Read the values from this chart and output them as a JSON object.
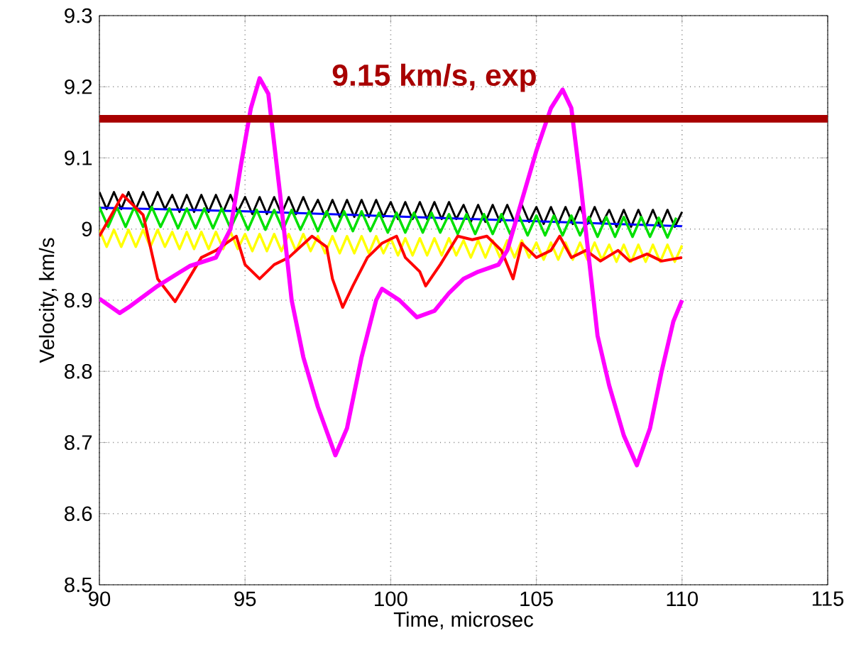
{
  "chart_data": {
    "type": "line",
    "xlabel": "Time, microsec",
    "ylabel": "Velocity, km/s",
    "xlim": [
      90,
      115
    ],
    "ylim": [
      8.5,
      9.3
    ],
    "xticks": [
      90,
      95,
      100,
      105,
      110,
      115
    ],
    "yticks": [
      8.5,
      8.6,
      8.7,
      8.8,
      8.9,
      9,
      9.1,
      9.2,
      9.3
    ],
    "grid": true,
    "x": [
      90,
      90.25,
      90.5,
      90.75,
      91,
      91.25,
      91.5,
      91.75,
      92,
      92.25,
      92.5,
      92.75,
      93,
      93.25,
      93.5,
      93.75,
      94,
      94.25,
      94.5,
      94.75,
      95,
      95.25,
      95.5,
      95.75,
      96,
      96.25,
      96.5,
      96.75,
      97,
      97.25,
      97.5,
      97.75,
      98,
      98.25,
      98.5,
      98.75,
      99,
      99.25,
      99.5,
      99.75,
      100,
      100.25,
      100.5,
      100.75,
      101,
      101.25,
      101.5,
      101.75,
      102,
      102.25,
      102.5,
      102.75,
      103,
      103.25,
      103.5,
      103.75,
      104,
      104.25,
      104.5,
      104.75,
      105,
      105.25,
      105.5,
      105.75,
      106,
      106.25,
      106.5,
      106.75,
      107,
      107.25,
      107.5,
      107.75,
      108,
      108.25,
      108.5,
      108.75,
      109,
      109.25,
      109.5,
      109.75,
      110
    ],
    "ref_lines": [
      {
        "axis": "y",
        "value": 9.155,
        "label": "9.15 km/s, exp",
        "color": "#a80000"
      }
    ],
    "series": [
      {
        "color": "#000000",
        "values": [
          9.052,
          9.028,
          9.052,
          9.028,
          9.052,
          9.028,
          9.052,
          9.028,
          9.052,
          9.028,
          9.048,
          9.024,
          9.048,
          9.024,
          9.048,
          9.024,
          9.048,
          9.024,
          9.048,
          9.024,
          9.045,
          9.021,
          9.045,
          9.021,
          9.045,
          9.021,
          9.045,
          9.021,
          9.045,
          9.021,
          9.041,
          9.017,
          9.041,
          9.017,
          9.041,
          9.017,
          9.041,
          9.017,
          9.041,
          9.017,
          9.038,
          9.014,
          9.038,
          9.014,
          9.038,
          9.014,
          9.038,
          9.014,
          9.038,
          9.014,
          9.034,
          9.01,
          9.034,
          9.01,
          9.034,
          9.01,
          9.034,
          9.01,
          9.034,
          9.01,
          9.031,
          9.007,
          9.031,
          9.007,
          9.031,
          9.007,
          9.031,
          9.007,
          9.031,
          9.007,
          9.027,
          9.003,
          9.027,
          9.003,
          9.027,
          9.003,
          9.027,
          9.003,
          9.027,
          9.003,
          9.024
        ]
      },
      {
        "color": "#0000ff",
        "x": [
          90,
          95,
          100,
          105,
          110
        ],
        "values": [
          9.03,
          9.025,
          9.018,
          9.011,
          9.004
        ]
      },
      {
        "color": "#00e000",
        "x": [
          90,
          90.3,
          90.6,
          90.9,
          91.2,
          91.5,
          91.8,
          92.1,
          92.4,
          92.7,
          93,
          93.3,
          93.6,
          93.9,
          94.2,
          94.5,
          94.8,
          95.1,
          95.4,
          95.7,
          96,
          96.3,
          96.6,
          96.9,
          97.2,
          97.5,
          97.8,
          98.1,
          98.4,
          98.7,
          99,
          99.3,
          99.6,
          99.9,
          100.2,
          100.5,
          100.8,
          101.1,
          101.4,
          101.7,
          102,
          102.3,
          102.6,
          102.9,
          103.2,
          103.5,
          103.8,
          104.1,
          104.4,
          104.7,
          105,
          105.3,
          105.6,
          105.9,
          106.2,
          106.5,
          106.8,
          107.1,
          107.4,
          107.7,
          108,
          108.3,
          108.6,
          108.9,
          109.2,
          109.5,
          109.8
        ],
        "values": [
          9.031,
          9.003,
          9.031,
          9.003,
          9.031,
          9.003,
          9.031,
          9.003,
          9.029,
          9.001,
          9.029,
          9.001,
          9.029,
          9.001,
          9.029,
          9.001,
          9.027,
          8.999,
          9.027,
          8.999,
          9.027,
          8.999,
          9.027,
          8.999,
          9.025,
          8.997,
          9.025,
          8.997,
          9.025,
          8.997,
          9.025,
          8.997,
          9.023,
          8.995,
          9.023,
          8.995,
          9.023,
          8.995,
          9.023,
          8.995,
          9.021,
          8.993,
          9.021,
          8.993,
          9.021,
          8.993,
          9.021,
          8.993,
          9.019,
          8.991,
          9.019,
          8.991,
          9.019,
          8.991,
          9.019,
          8.991,
          9.017,
          8.989,
          9.017,
          8.989,
          9.017,
          8.989,
          9.017,
          8.989,
          9.016,
          8.988,
          9.016
        ]
      },
      {
        "color": "#ffff00",
        "values": [
          8.999,
          8.975,
          8.999,
          8.975,
          8.999,
          8.975,
          8.999,
          8.975,
          8.999,
          8.975,
          8.996,
          8.972,
          8.996,
          8.972,
          8.996,
          8.972,
          8.996,
          8.972,
          8.996,
          8.972,
          8.993,
          8.969,
          8.993,
          8.969,
          8.993,
          8.969,
          8.993,
          8.969,
          8.993,
          8.969,
          8.99,
          8.966,
          8.99,
          8.966,
          8.99,
          8.966,
          8.99,
          8.966,
          8.99,
          8.966,
          8.987,
          8.963,
          8.987,
          8.963,
          8.987,
          8.963,
          8.987,
          8.963,
          8.987,
          8.963,
          8.984,
          8.96,
          8.984,
          8.96,
          8.984,
          8.96,
          8.984,
          8.96,
          8.984,
          8.96,
          8.981,
          8.957,
          8.981,
          8.957,
          8.981,
          8.957,
          8.981,
          8.957,
          8.981,
          8.957,
          8.978,
          8.954,
          8.978,
          8.954,
          8.978,
          8.954,
          8.978,
          8.954,
          8.978,
          8.954,
          8.977
        ]
      },
      {
        "color": "#ff0000",
        "x": [
          90,
          90.8,
          91.5,
          92,
          92.6,
          93.5,
          94,
          94.7,
          95,
          95.5,
          96,
          96.5,
          97.3,
          97.8,
          98,
          98.35,
          98.7,
          99.2,
          99.7,
          100.2,
          100.5,
          101,
          101.2,
          101.7,
          102.3,
          102.8,
          103.3,
          103.8,
          104.2,
          104.5,
          105,
          105.5,
          105.8,
          106.2,
          106.7,
          107.2,
          107.8,
          108.2,
          108.8,
          109.3,
          110
        ],
        "values": [
          8.99,
          9.048,
          9.02,
          8.93,
          8.898,
          8.96,
          8.97,
          8.99,
          8.95,
          8.93,
          8.95,
          8.96,
          8.99,
          8.975,
          8.93,
          8.89,
          8.92,
          8.96,
          8.98,
          8.99,
          8.96,
          8.94,
          8.92,
          8.95,
          8.99,
          8.985,
          8.99,
          8.97,
          8.93,
          8.98,
          8.96,
          8.97,
          8.99,
          8.96,
          8.97,
          8.955,
          8.97,
          8.955,
          8.965,
          8.955,
          8.96
        ]
      },
      {
        "color": "#ff00ff",
        "x": [
          90,
          90.7,
          91,
          92,
          93.1,
          94,
          94.5,
          94.85,
          95.2,
          95.5,
          95.8,
          96.2,
          96.6,
          97,
          97.5,
          98.1,
          98.5,
          99,
          99.5,
          99.7,
          100.3,
          100.9,
          101.5,
          102,
          102.5,
          103,
          103.7,
          104,
          104.5,
          105,
          105.5,
          105.9,
          106.2,
          106.5,
          106.8,
          107.1,
          107.5,
          108,
          108.45,
          108.9,
          109.3,
          109.7,
          110
        ],
        "values": [
          8.902,
          8.882,
          8.89,
          8.92,
          8.948,
          8.96,
          9.0,
          9.088,
          9.17,
          9.212,
          9.19,
          9.05,
          8.9,
          8.82,
          8.75,
          8.682,
          8.72,
          8.82,
          8.9,
          8.916,
          8.9,
          8.876,
          8.885,
          8.91,
          8.93,
          8.94,
          8.95,
          8.97,
          9.04,
          9.11,
          9.17,
          9.196,
          9.17,
          9.07,
          8.96,
          8.85,
          8.78,
          8.71,
          8.668,
          8.72,
          8.8,
          8.87,
          8.9
        ]
      }
    ]
  }
}
